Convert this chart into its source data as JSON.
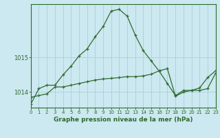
{
  "title": "Graphe pression niveau de la mer (hPa)",
  "background_color": "#cce8f0",
  "grid_color": "#aacfdc",
  "line_color": "#2d6a2d",
  "x_min": 0,
  "x_max": 23,
  "y_min": 1013.55,
  "y_max": 1016.55,
  "yticks": [
    1014,
    1015
  ],
  "xticks": [
    0,
    1,
    2,
    3,
    4,
    5,
    6,
    7,
    8,
    9,
    10,
    11,
    12,
    13,
    14,
    15,
    16,
    17,
    18,
    19,
    20,
    21,
    22,
    23
  ],
  "series1": [
    1013.65,
    1014.1,
    1014.2,
    1014.2,
    1014.5,
    1014.75,
    1015.05,
    1015.25,
    1015.6,
    1015.9,
    1016.35,
    1016.4,
    1016.2,
    1015.65,
    1015.2,
    1014.9,
    1014.6,
    1014.25,
    1013.9,
    1014.05,
    1014.05,
    1014.05,
    1014.1,
    1014.55
  ],
  "series2": [
    1013.85,
    1013.9,
    1013.95,
    1014.15,
    1014.15,
    1014.2,
    1014.25,
    1014.3,
    1014.35,
    1014.38,
    1014.4,
    1014.42,
    1014.45,
    1014.45,
    1014.47,
    1014.52,
    1014.62,
    1014.68,
    1013.88,
    1014.0,
    1014.05,
    1014.12,
    1014.42,
    1014.62
  ]
}
